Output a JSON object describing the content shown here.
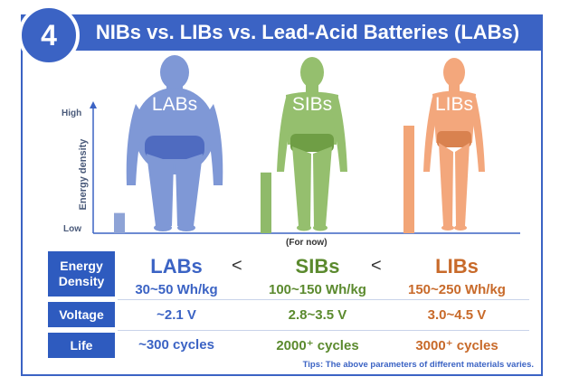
{
  "badge": "4",
  "title": "NIBs vs. LIBs vs. Lead-Acid Batteries (LABs)",
  "chart": {
    "ylabel": "Energy density",
    "high_label": "High",
    "low_label": "Low",
    "note_for_now": "(For now)"
  },
  "chart_data": {
    "type": "bar",
    "categories": [
      "LABs",
      "SIBs",
      "LIBs"
    ],
    "values": [
      0.16,
      0.48,
      0.85
    ],
    "ylim": [
      0,
      1
    ],
    "ylabel": "Energy density",
    "colors": [
      "#8ea3d6",
      "#8fba6a",
      "#f2a577"
    ]
  },
  "figures": [
    {
      "label": "LABs",
      "color": "#7f98d6",
      "shorts": "#4f6bc0"
    },
    {
      "label": "SIBs",
      "color": "#95bf6e",
      "shorts": "#6f9e45"
    },
    {
      "label": "LIBs",
      "color": "#f3a77c",
      "shorts": "#d9824f"
    }
  ],
  "table": {
    "lt1": "<",
    "lt2": "<",
    "headers": [
      "LABs",
      "SIBs",
      "LIBs"
    ],
    "rows": [
      {
        "label": "Energy Density",
        "values": [
          "30~50 Wh/kg",
          "100~150 Wh/kg",
          "150~250 Wh/kg"
        ]
      },
      {
        "label": "Voltage",
        "values": [
          "~2.1 V",
          "2.8~3.5 V",
          "3.0~4.5 V"
        ]
      },
      {
        "label": "Life",
        "values": [
          "~300 cycles",
          "2000⁺ cycles",
          "3000⁺ cycles"
        ]
      }
    ]
  },
  "tips": "Tips: The above parameters of different materials varies."
}
